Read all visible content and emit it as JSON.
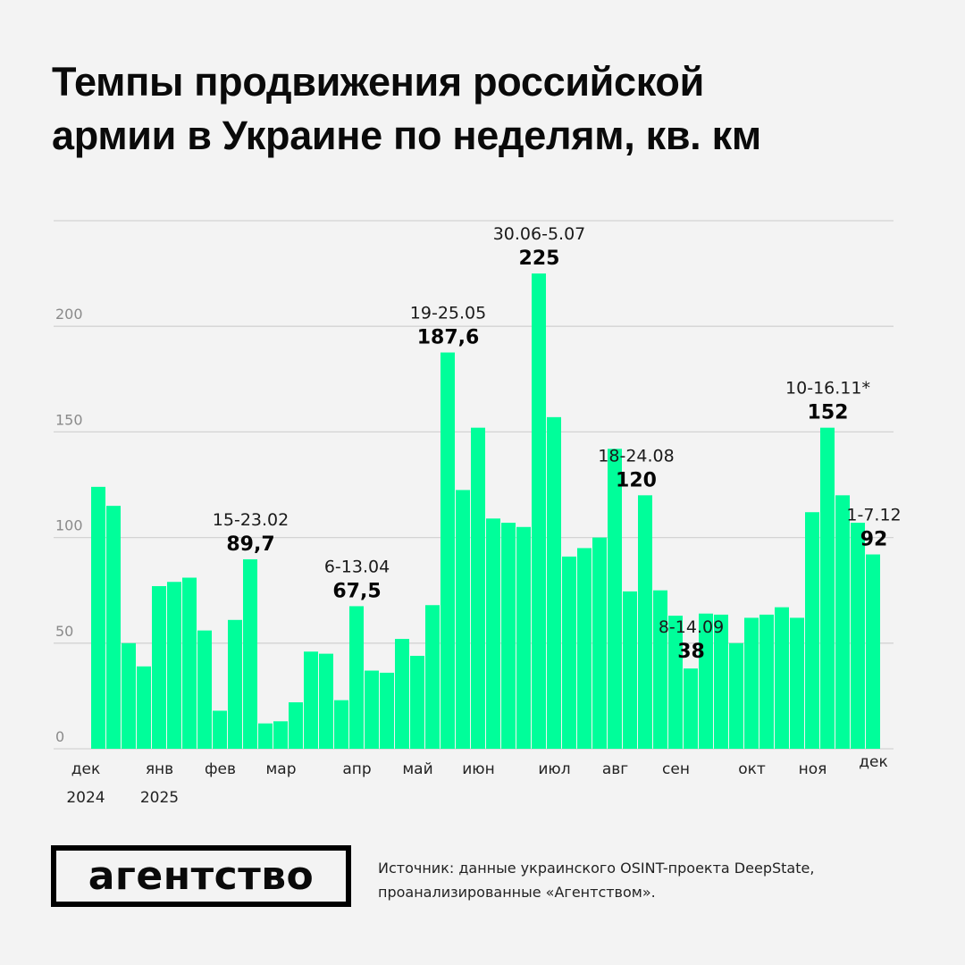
{
  "title": {
    "line1": "Темпы продвижения российской",
    "line2": "армии в Украине по неделям, кв. км"
  },
  "chart_data": {
    "type": "bar",
    "title": "Темпы продвижения российской армии в Украине по неделям, кв. км",
    "xlabel": "",
    "ylabel": "кв. км",
    "ylim": [
      0,
      250
    ],
    "yticks": [
      0,
      50,
      100,
      150,
      200,
      250
    ],
    "ytick_labels": [
      "0",
      "50",
      "100",
      "150",
      "200",
      ""
    ],
    "grid": true,
    "legend": "none",
    "bar_color": "#00fe9a",
    "values": [
      124,
      115,
      50,
      39,
      77,
      79,
      81,
      56,
      18,
      61,
      89.7,
      12,
      13,
      22,
      46,
      45,
      23,
      67.5,
      37,
      36,
      52,
      44,
      68,
      187.6,
      122.5,
      152,
      109,
      107,
      105,
      225,
      157,
      91,
      95,
      100,
      142,
      74.5,
      120,
      75,
      63,
      38,
      64,
      63.5,
      50,
      62,
      63.5,
      67,
      62,
      112,
      152,
      120,
      107,
      92
    ],
    "month_ticks": [
      {
        "label": "дек",
        "year": "2024",
        "bar_index": 0
      },
      {
        "label": "янв",
        "year": "2025",
        "bar_index": 4
      },
      {
        "label": "фев",
        "year": "",
        "bar_index": 8
      },
      {
        "label": "мар",
        "year": "",
        "bar_index": 12
      },
      {
        "label": "апр",
        "year": "",
        "bar_index": 17
      },
      {
        "label": "май",
        "year": "",
        "bar_index": 21
      },
      {
        "label": "июн",
        "year": "",
        "bar_index": 25
      },
      {
        "label": "июл",
        "year": "",
        "bar_index": 30
      },
      {
        "label": "авг",
        "year": "",
        "bar_index": 34
      },
      {
        "label": "сен",
        "year": "",
        "bar_index": 38
      },
      {
        "label": "окт",
        "year": "",
        "bar_index": 43
      },
      {
        "label": "ноя",
        "year": "",
        "bar_index": 47
      },
      {
        "label": "дек",
        "year": "",
        "bar_index": 51
      }
    ],
    "annotations": [
      {
        "bar_index": 10,
        "date": "15-23.02",
        "value": "89,7"
      },
      {
        "bar_index": 17,
        "date": "6-13.04",
        "value": "67,5"
      },
      {
        "bar_index": 23,
        "date": "19-25.05",
        "value": "187,6"
      },
      {
        "bar_index": 29,
        "date": "30.06-5.07",
        "value": "225"
      },
      {
        "bar_index": 36,
        "date": "18-24.08",
        "value": "120"
      },
      {
        "bar_index": 39,
        "date": "8-14.09",
        "value": "38"
      },
      {
        "bar_index": 48,
        "date": "10-16.11*",
        "value": "152"
      },
      {
        "bar_index": 51,
        "date": "1-7.12",
        "value": "92"
      }
    ]
  },
  "footer": {
    "logo": "агентство",
    "source_line1": "Источник: данные украинского OSINT-проекта DeepState,",
    "source_line2": "проанализированные «Агентством»."
  }
}
